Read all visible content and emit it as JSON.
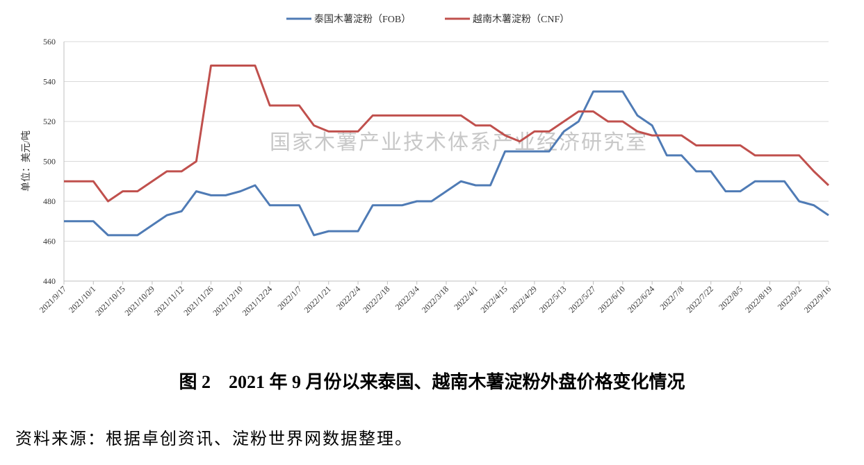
{
  "chart_data": {
    "type": "line",
    "watermark": "国家木薯产业技术体系产业经济研究室",
    "y_label": "单位：美元/吨",
    "categories": [
      "2021/9/17",
      null,
      "2021/10/1",
      null,
      "2021/10/15",
      null,
      "2021/10/29",
      null,
      "2021/11/12",
      null,
      "2021/11/26",
      null,
      "2021/12/10",
      null,
      "2021/12/24",
      null,
      "2022/1/7",
      null,
      "2022/1/21",
      null,
      "2022/2/4",
      null,
      "2022/2/18",
      null,
      "2022/3/4",
      null,
      "2022/3/18",
      null,
      "2022/4/1",
      null,
      "2022/4/15",
      null,
      "2022/4/29",
      null,
      "2022/5/13",
      null,
      "2022/5/27",
      null,
      "2022/6/10",
      null,
      "2022/6/24",
      null,
      "2022/7/8",
      null,
      "2022/7/22",
      null,
      "2022/8/5",
      null,
      "2022/8/19",
      null,
      "2022/9/2",
      null,
      "2022/9/16"
    ],
    "series": [
      {
        "name": "泰国木薯淀粉（FOB）",
        "color": "#4f7bb5",
        "values": [
          470,
          470,
          470,
          463,
          463,
          463,
          468,
          473,
          475,
          485,
          483,
          483,
          485,
          488,
          478,
          478,
          478,
          463,
          465,
          465,
          465,
          478,
          478,
          478,
          480,
          480,
          485,
          490,
          488,
          488,
          505,
          505,
          505,
          505,
          515,
          520,
          535,
          535,
          535,
          523,
          518,
          503,
          503,
          495,
          495,
          485,
          485,
          490,
          490,
          490,
          480,
          478,
          473
        ]
      },
      {
        "name": "越南木薯淀粉（CNF）",
        "color": "#c0504d",
        "values": [
          490,
          490,
          490,
          480,
          485,
          485,
          490,
          495,
          495,
          500,
          548,
          548,
          548,
          548,
          528,
          528,
          528,
          518,
          515,
          515,
          515,
          523,
          523,
          523,
          523,
          523,
          523,
          523,
          518,
          518,
          513,
          510,
          515,
          515,
          520,
          525,
          525,
          520,
          520,
          515,
          513,
          513,
          513,
          508,
          508,
          508,
          508,
          503,
          503,
          503,
          503,
          495,
          488
        ]
      }
    ],
    "ylim": [
      440,
      560
    ],
    "yticks": [
      440,
      460,
      480,
      500,
      520,
      540,
      560
    ],
    "grid": true,
    "legend": "top"
  },
  "caption": "图 2　2021 年 9 月份以来泰国、越南木薯淀粉外盘价格变化情况",
  "source": "资料来源：根据卓创资讯、淀粉世界网数据整理。"
}
